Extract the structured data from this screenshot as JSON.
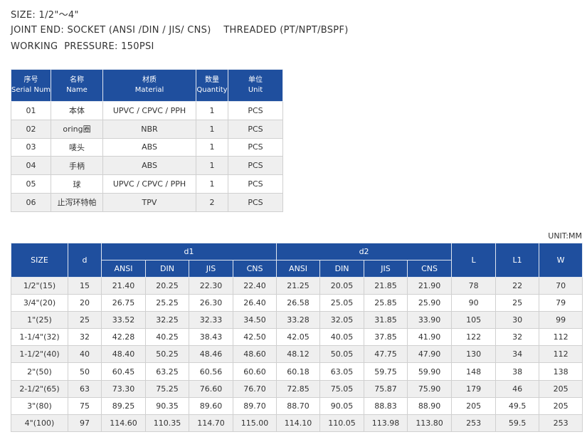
{
  "specs": [
    "SIZE: 1/2\"～4\"",
    "JOINT END: SOCKET (ANSI /DIN / JIS/ CNS)    THREADED (PT/NPT/BSPF)",
    "WORKING  PRESSURE: 150PSI"
  ],
  "parts_table": {
    "header": [
      [
        "序号",
        "Serial Number"
      ],
      [
        "名称",
        "Name"
      ],
      [
        "材质",
        "Material"
      ],
      [
        "数量",
        "Quantity"
      ],
      [
        "单位",
        "Unit"
      ]
    ],
    "rows": [
      [
        "01",
        "本体",
        "UPVC / CPVC / PPH",
        "1",
        "PCS"
      ],
      [
        "02",
        "oring圈",
        "NBR",
        "1",
        "PCS"
      ],
      [
        "03",
        "唛头",
        "ABS",
        "1",
        "PCS"
      ],
      [
        "04",
        "手柄",
        "ABS",
        "1",
        "PCS"
      ],
      [
        "05",
        "球",
        "UPVC / CPVC / PPH",
        "1",
        "PCS"
      ],
      [
        "06",
        "止泻环特帕",
        "TPV",
        "2",
        "PCS"
      ]
    ]
  },
  "size_table": {
    "unit": "UNIT:MM",
    "header": {
      "size": "SIZE",
      "d": "d",
      "d1": "d1",
      "d2": "d2",
      "L": "L",
      "L1": "L1",
      "W": "W",
      "standards": [
        "ANSI",
        "DIN",
        "JIS",
        "CNS",
        "ANSI",
        "DIN",
        "JIS",
        "CNS"
      ]
    },
    "rows": [
      [
        "1/2\"(15)",
        "15",
        "21.40",
        "20.25",
        "22.30",
        "22.40",
        "21.25",
        "20.05",
        "21.85",
        "21.90",
        "78",
        "22",
        "70"
      ],
      [
        "3/4\"(20)",
        "20",
        "26.75",
        "25.25",
        "26.30",
        "26.40",
        "26.58",
        "25.05",
        "25.85",
        "25.90",
        "90",
        "25",
        "79"
      ],
      [
        "1\"(25)",
        "25",
        "33.52",
        "32.25",
        "32.33",
        "34.50",
        "33.28",
        "32.05",
        "31.85",
        "33.90",
        "105",
        "30",
        "99"
      ],
      [
        "1-1/4\"(32)",
        "32",
        "42.28",
        "40.25",
        "38.43",
        "42.50",
        "42.05",
        "40.05",
        "37.85",
        "41.90",
        "122",
        "32",
        "112"
      ],
      [
        "1-1/2\"(40)",
        "40",
        "48.40",
        "50.25",
        "48.46",
        "48.60",
        "48.12",
        "50.05",
        "47.75",
        "47.90",
        "130",
        "34",
        "112"
      ],
      [
        "2\"(50)",
        "50",
        "60.45",
        "63.25",
        "60.56",
        "60.60",
        "60.18",
        "63.05",
        "59.75",
        "59.90",
        "148",
        "38",
        "138"
      ],
      [
        "2-1/2\"(65)",
        "63",
        "73.30",
        "75.25",
        "76.60",
        "76.70",
        "72.85",
        "75.05",
        "75.87",
        "75.90",
        "179",
        "46",
        "205"
      ],
      [
        "3\"(80)",
        "75",
        "89.25",
        "90.35",
        "89.60",
        "89.70",
        "88.70",
        "90.05",
        "88.83",
        "88.90",
        "205",
        "49.5",
        "205"
      ],
      [
        "4\"(100)",
        "97",
        "114.60",
        "110.35",
        "114.70",
        "115.00",
        "114.10",
        "110.05",
        "113.98",
        "113.80",
        "253",
        "59.5",
        "253"
      ]
    ]
  }
}
